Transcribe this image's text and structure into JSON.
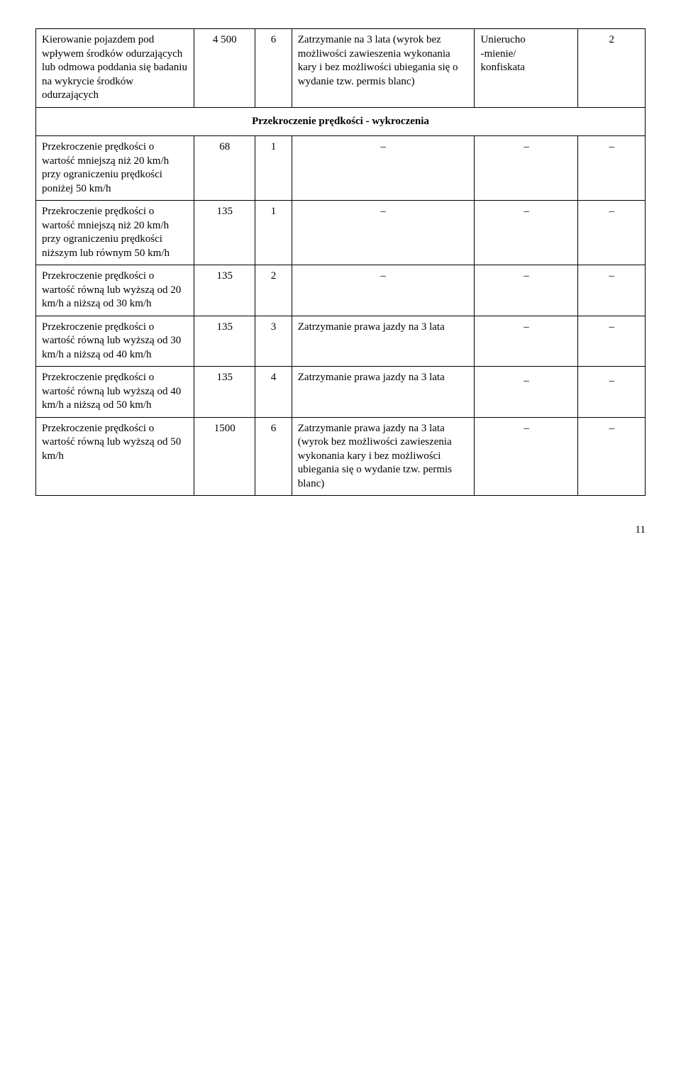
{
  "rows": {
    "r0": {
      "desc": "Kierowanie pojazdem pod wpływem środków odurzających lub odmowa poddania się badaniu na wykrycie środków odurzających",
      "fine": "4 500",
      "pts": "6",
      "penalty": "Zatrzymanie na 3 lata (wyrok bez możliwości zawieszenia wykonania kary i bez możliwości ubiegania się o wydanie tzw. permis blanc)",
      "extra": "Unierucho\n-mienie/\nkonfiskata",
      "last": "2"
    },
    "section": "Przekroczenie prędkości - wykroczenia",
    "r1": {
      "desc": "Przekroczenie prędkości o wartość mniejszą  niż 20 km/h przy ograniczeniu prędkości poniżej 50 km/h",
      "fine": "68",
      "pts": "1",
      "penalty": "–",
      "extra": "–",
      "last": "–"
    },
    "r2": {
      "desc": "Przekroczenie prędkości o wartość mniejszą niż 20 km/h przy ograniczeniu prędkości niższym lub równym 50 km/h",
      "fine": "135",
      "pts": "1",
      "penalty": "–",
      "extra": "–",
      "last": "–"
    },
    "r3": {
      "desc": "Przekroczenie prędkości o wartość równą lub wyższą od 20 km/h a niższą od 30 km/h",
      "fine": "135",
      "pts": "2",
      "penalty": "–",
      "extra": "–",
      "last": "–"
    },
    "r4": {
      "desc": "Przekroczenie prędkości o wartość równą lub wyższą od 30 km/h a niższą od 40 km/h",
      "fine": "135",
      "pts": "3",
      "penalty": "Zatrzymanie prawa jazdy na 3 lata",
      "extra": "–",
      "last": "–"
    },
    "r5": {
      "desc": "Przekroczenie prędkości o wartość równą lub wyższą od 40 km/h a niższą od 50 km/h",
      "fine": "135",
      "pts": "4",
      "penalty": "Zatrzymanie prawa jazdy na 3 lata",
      "extra": "_",
      "last": "_"
    },
    "r6": {
      "desc": "Przekroczenie prędkości o wartość równą lub wyższą od 50 km/h",
      "fine": "1500",
      "pts": "6",
      "penalty": "Zatrzymanie prawa jazdy na 3 lata (wyrok bez możliwości zawieszenia wykonania kary i bez możliwości ubiegania się o wydanie tzw. permis blanc)",
      "extra": "–",
      "last": "–"
    }
  },
  "pageNumber": "11"
}
